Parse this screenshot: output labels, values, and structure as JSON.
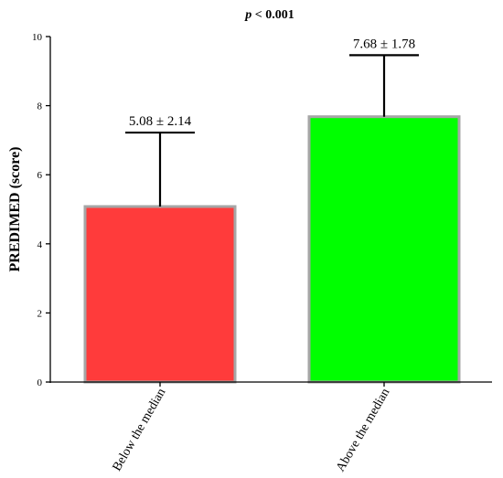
{
  "chart_data": {
    "type": "bar",
    "title": "p < 0.001",
    "title_prefix": "p",
    "title_suffix": " < 0.001",
    "ylabel": "PREDIMED (score)",
    "xlabel": "",
    "ylim": [
      0,
      10
    ],
    "yticks": [
      0,
      2,
      4,
      6,
      8,
      10
    ],
    "categories": [
      "Below the median",
      "Above the median"
    ],
    "values": [
      5.08,
      7.68
    ],
    "errors": [
      2.14,
      1.78
    ],
    "data_labels": [
      "5.08 ± 2.14",
      "7.68 ± 1.78"
    ],
    "colors": [
      "#ff3b3b",
      "#00ff00"
    ],
    "edge_color": "#a6a6a6",
    "grid": false,
    "legend": "none"
  }
}
